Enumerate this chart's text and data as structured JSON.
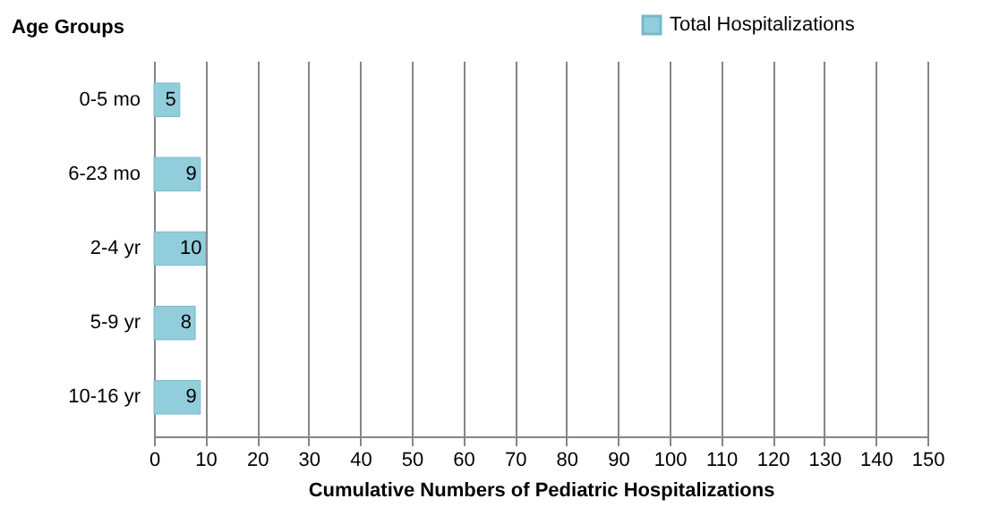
{
  "chart_data": {
    "type": "bar",
    "orientation": "horizontal",
    "ylabel": "Age Groups",
    "xlabel": "Cumulative Numbers of Pediatric Hospitalizations",
    "categories": [
      "0-5 mo",
      "6-23 mo",
      "2-4 yr",
      "5-9 yr",
      "10-16 yr"
    ],
    "series": [
      {
        "name": "Total Hospitalizations",
        "color": "#92cddc",
        "values": [
          5,
          9,
          10,
          8,
          9
        ]
      }
    ],
    "xlim": [
      0,
      150
    ],
    "xticks": [
      0,
      10,
      20,
      30,
      40,
      50,
      60,
      70,
      80,
      90,
      100,
      110,
      120,
      130,
      140,
      150
    ],
    "grid": "x",
    "legend": "top right",
    "data_labels": true
  }
}
